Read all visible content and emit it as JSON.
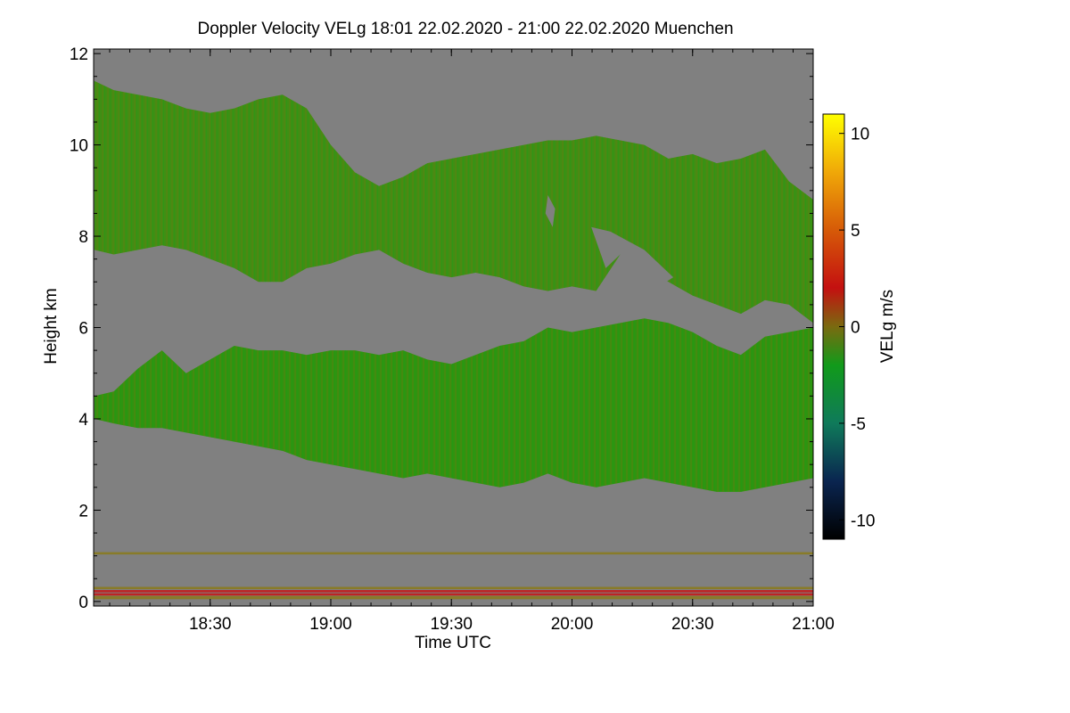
{
  "chart_data": {
    "type": "heatmap",
    "title": "Doppler Velocity VELg   18:01 22.02.2020 - 21:00 22.02.2020 Muenchen",
    "xlabel": "Time UTC",
    "ylabel": "Height km",
    "xlim_hours": [
      18.0167,
      21.0
    ],
    "ylim_km": [
      -0.1,
      12.1
    ],
    "x_ticks": [
      {
        "value": 18.5,
        "label": "18:30"
      },
      {
        "value": 19.0,
        "label": "19:00"
      },
      {
        "value": 19.5,
        "label": "19:30"
      },
      {
        "value": 20.0,
        "label": "20:00"
      },
      {
        "value": 20.5,
        "label": "20:30"
      },
      {
        "value": 21.0,
        "label": "21:00"
      }
    ],
    "y_ticks": [
      {
        "value": 0,
        "label": "0"
      },
      {
        "value": 2,
        "label": "2"
      },
      {
        "value": 4,
        "label": "4"
      },
      {
        "value": 6,
        "label": "6"
      },
      {
        "value": 8,
        "label": "8"
      },
      {
        "value": 10,
        "label": "10"
      },
      {
        "value": 12,
        "label": "12"
      }
    ],
    "colorbar": {
      "label": "VELg m/s",
      "range": [
        -11,
        11
      ],
      "ticks": [
        {
          "value": 10,
          "label": "10"
        },
        {
          "value": 5,
          "label": "5"
        },
        {
          "value": 0,
          "label": "0"
        },
        {
          "value": -5,
          "label": "-5"
        },
        {
          "value": -10,
          "label": "-10"
        }
      ],
      "stops": [
        {
          "value": -11,
          "color": "#000000"
        },
        {
          "value": -8,
          "color": "#0a2550"
        },
        {
          "value": -5,
          "color": "#0f7a5a"
        },
        {
          "value": -2,
          "color": "#119a1a"
        },
        {
          "value": 0,
          "color": "#7a6a10"
        },
        {
          "value": 2,
          "color": "#c41010"
        },
        {
          "value": 5,
          "color": "#d65a08"
        },
        {
          "value": 8,
          "color": "#f0a808"
        },
        {
          "value": 11,
          "color": "#ffff00"
        }
      ]
    },
    "no_signal_color": "#808080",
    "cloud_layers": [
      {
        "name": "upper-cloud",
        "base_color": "#3f8f14",
        "top_km": [
          [
            18.02,
            11.4
          ],
          [
            18.1,
            11.2
          ],
          [
            18.2,
            11.1
          ],
          [
            18.3,
            11.0
          ],
          [
            18.4,
            10.8
          ],
          [
            18.5,
            10.7
          ],
          [
            18.6,
            10.8
          ],
          [
            18.7,
            11.0
          ],
          [
            18.8,
            11.1
          ],
          [
            18.9,
            10.8
          ],
          [
            19.0,
            10.0
          ],
          [
            19.1,
            9.4
          ],
          [
            19.2,
            9.1
          ],
          [
            19.3,
            9.3
          ],
          [
            19.4,
            9.6
          ],
          [
            19.5,
            9.7
          ],
          [
            19.6,
            9.8
          ],
          [
            19.7,
            9.9
          ],
          [
            19.8,
            10.0
          ],
          [
            19.9,
            10.1
          ],
          [
            20.0,
            10.1
          ],
          [
            20.1,
            10.2
          ],
          [
            20.2,
            10.1
          ],
          [
            20.3,
            10.0
          ],
          [
            20.4,
            9.7
          ],
          [
            20.5,
            9.8
          ],
          [
            20.6,
            9.6
          ],
          [
            20.7,
            9.7
          ],
          [
            20.8,
            9.9
          ],
          [
            20.9,
            9.2
          ],
          [
            21.0,
            8.8
          ]
        ],
        "base_km": [
          [
            18.02,
            7.7
          ],
          [
            18.1,
            7.6
          ],
          [
            18.2,
            7.7
          ],
          [
            18.3,
            7.8
          ],
          [
            18.4,
            7.7
          ],
          [
            18.5,
            7.5
          ],
          [
            18.6,
            7.3
          ],
          [
            18.7,
            7.0
          ],
          [
            18.8,
            7.0
          ],
          [
            18.9,
            7.3
          ],
          [
            19.0,
            7.4
          ],
          [
            19.1,
            7.6
          ],
          [
            19.2,
            7.7
          ],
          [
            19.3,
            7.4
          ],
          [
            19.4,
            7.2
          ],
          [
            19.5,
            7.1
          ],
          [
            19.6,
            7.2
          ],
          [
            19.7,
            7.1
          ],
          [
            19.8,
            6.9
          ],
          [
            19.9,
            6.8
          ],
          [
            20.0,
            6.9
          ],
          [
            20.1,
            6.8
          ],
          [
            20.2,
            7.6
          ],
          [
            20.3,
            7.3
          ],
          [
            20.4,
            7.0
          ],
          [
            20.5,
            6.7
          ],
          [
            20.6,
            6.5
          ],
          [
            20.7,
            6.3
          ],
          [
            20.8,
            6.6
          ],
          [
            20.9,
            6.5
          ],
          [
            21.0,
            6.1
          ]
        ]
      },
      {
        "name": "lower-cloud",
        "base_color": "#2f9410",
        "top_km": [
          [
            18.02,
            4.5
          ],
          [
            18.1,
            4.6
          ],
          [
            18.2,
            5.1
          ],
          [
            18.3,
            5.5
          ],
          [
            18.4,
            5.0
          ],
          [
            18.5,
            5.3
          ],
          [
            18.6,
            5.6
          ],
          [
            18.7,
            5.5
          ],
          [
            18.8,
            5.5
          ],
          [
            18.9,
            5.4
          ],
          [
            19.0,
            5.5
          ],
          [
            19.1,
            5.5
          ],
          [
            19.2,
            5.4
          ],
          [
            19.3,
            5.5
          ],
          [
            19.4,
            5.3
          ],
          [
            19.5,
            5.2
          ],
          [
            19.6,
            5.4
          ],
          [
            19.7,
            5.6
          ],
          [
            19.8,
            5.7
          ],
          [
            19.9,
            6.0
          ],
          [
            20.0,
            5.9
          ],
          [
            20.1,
            6.0
          ],
          [
            20.2,
            6.1
          ],
          [
            20.3,
            6.2
          ],
          [
            20.4,
            6.1
          ],
          [
            20.5,
            5.9
          ],
          [
            20.6,
            5.6
          ],
          [
            20.7,
            5.4
          ],
          [
            20.8,
            5.8
          ],
          [
            20.9,
            5.9
          ],
          [
            21.0,
            6.0
          ]
        ],
        "base_km": [
          [
            18.02,
            4.0
          ],
          [
            18.1,
            3.9
          ],
          [
            18.2,
            3.8
          ],
          [
            18.3,
            3.8
          ],
          [
            18.4,
            3.7
          ],
          [
            18.5,
            3.6
          ],
          [
            18.6,
            3.5
          ],
          [
            18.7,
            3.4
          ],
          [
            18.8,
            3.3
          ],
          [
            18.9,
            3.1
          ],
          [
            19.0,
            3.0
          ],
          [
            19.1,
            2.9
          ],
          [
            19.2,
            2.8
          ],
          [
            19.3,
            2.7
          ],
          [
            19.4,
            2.8
          ],
          [
            19.5,
            2.7
          ],
          [
            19.6,
            2.6
          ],
          [
            19.7,
            2.5
          ],
          [
            19.8,
            2.6
          ],
          [
            19.9,
            2.8
          ],
          [
            20.0,
            2.6
          ],
          [
            20.1,
            2.5
          ],
          [
            20.2,
            2.6
          ],
          [
            20.3,
            2.7
          ],
          [
            20.4,
            2.6
          ],
          [
            20.5,
            2.5
          ],
          [
            20.6,
            2.4
          ],
          [
            20.7,
            2.4
          ],
          [
            20.8,
            2.5
          ],
          [
            20.9,
            2.6
          ],
          [
            21.0,
            2.7
          ]
        ]
      }
    ],
    "clear_gaps": [
      {
        "name": "clear-gap",
        "points_hours_km": [
          [
            20.08,
            8.2
          ],
          [
            20.14,
            7.3
          ],
          [
            20.2,
            7.6
          ],
          [
            20.26,
            7.2
          ],
          [
            20.36,
            6.9
          ],
          [
            20.42,
            7.1
          ],
          [
            20.3,
            7.7
          ],
          [
            20.16,
            8.1
          ]
        ]
      },
      {
        "name": "clear-gap",
        "points_hours_km": [
          [
            19.9,
            8.9
          ],
          [
            19.93,
            8.6
          ],
          [
            19.92,
            8.2
          ],
          [
            19.89,
            8.5
          ]
        ]
      }
    ],
    "near_ground_bands": [
      {
        "name": "near-ground-echo-band",
        "from_km": 0.05,
        "to_km": 0.12,
        "color": "#8a7a1a"
      },
      {
        "name": "near-ground-echo-band",
        "from_km": 0.13,
        "to_km": 0.18,
        "color": "#c81414"
      },
      {
        "name": "near-ground-echo-band",
        "from_km": 0.2,
        "to_km": 0.25,
        "color": "#c81414"
      },
      {
        "name": "near-ground-echo-band",
        "from_km": 0.27,
        "to_km": 0.32,
        "color": "#8a7a1a"
      },
      {
        "name": "near-ground-echo-band",
        "from_km": 1.03,
        "to_km": 1.08,
        "color": "#8a7a1a"
      }
    ]
  }
}
